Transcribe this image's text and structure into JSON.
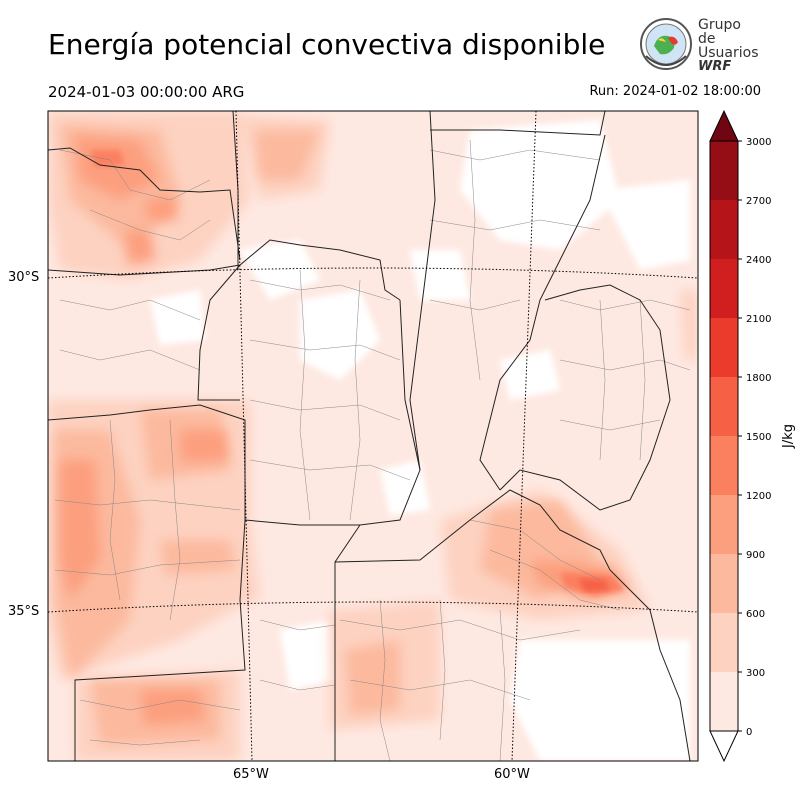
{
  "header": {
    "title": "Energía potencial convectiva disponible",
    "valid_time": "2024-01-03 00:00:00 ARG",
    "run_time": "Run: 2024-01-02 18:00:00"
  },
  "logo": {
    "line1": "Grupo de",
    "line2": "Usuarios",
    "line3": "WRF"
  },
  "map": {
    "lat_labels": [
      "30°S",
      "35°S"
    ],
    "lon_labels": [
      "65°W",
      "60°W"
    ]
  },
  "colorbar": {
    "unit": "J/kg",
    "ticks": [
      "0",
      "300",
      "600",
      "900",
      "1200",
      "1500",
      "1800",
      "2100",
      "2400",
      "2700",
      "3000"
    ],
    "colors": [
      "#fee9e2",
      "#fdd2c1",
      "#fcb99e",
      "#fc9f7e",
      "#fb8060",
      "#f66146",
      "#eb3b2c",
      "#d11e1f",
      "#b51419",
      "#950d15",
      "#6f0611"
    ]
  }
}
